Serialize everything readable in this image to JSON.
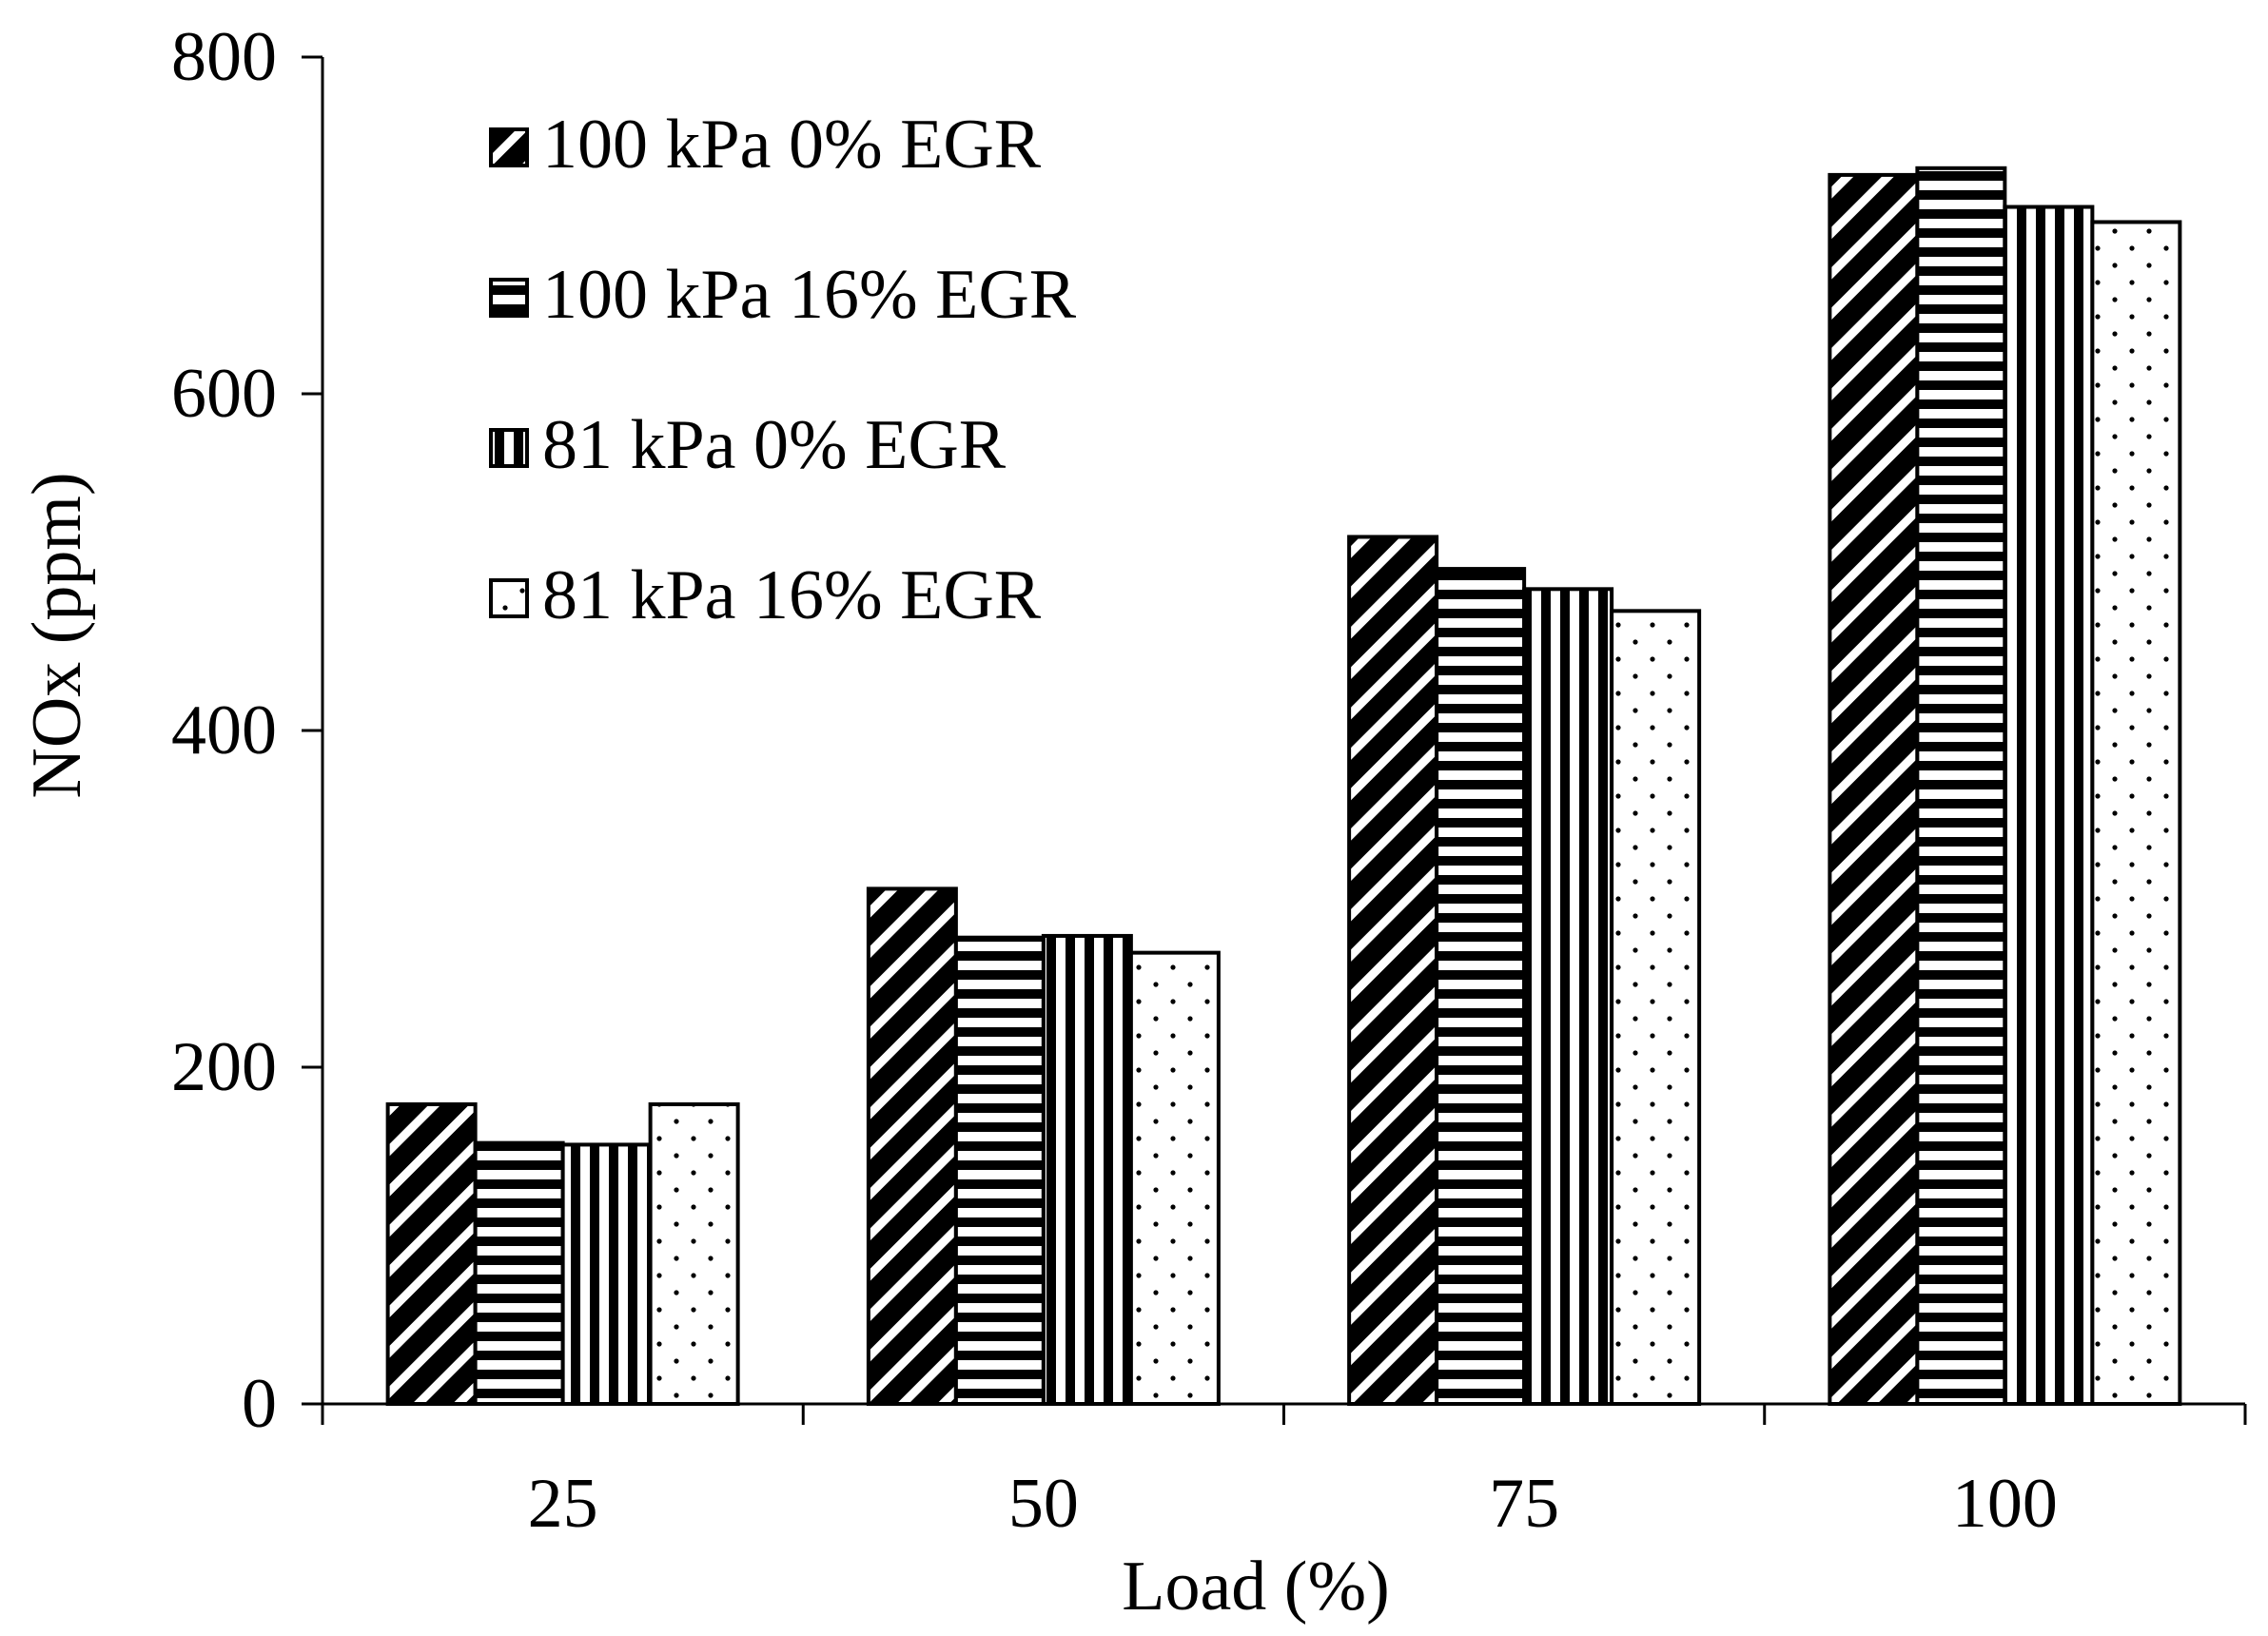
{
  "chart_data": {
    "type": "bar",
    "title": "",
    "xlabel": "Load (%)",
    "ylabel": "NOx (ppm)",
    "categories": [
      "25",
      "50",
      "75",
      "100"
    ],
    "ylim": [
      0,
      800
    ],
    "yticks": [
      0,
      200,
      400,
      600,
      800
    ],
    "grid": false,
    "legend_position": "top-left",
    "series": [
      {
        "name": "100 kPa 0% EGR",
        "pattern": "diagonal",
        "values": [
          178,
          306,
          515,
          730
        ]
      },
      {
        "name": "100 kPa 16% EGR",
        "pattern": "horizontal",
        "values": [
          155,
          277,
          496,
          734
        ]
      },
      {
        "name": "81 kPa 0% EGR",
        "pattern": "vertical",
        "values": [
          154,
          278,
          484,
          711
        ]
      },
      {
        "name": "81 kPa 16% EGR",
        "pattern": "dots",
        "values": [
          178,
          268,
          471,
          702
        ]
      }
    ]
  },
  "colors": {
    "ink": "#000000",
    "paper": "#ffffff"
  }
}
